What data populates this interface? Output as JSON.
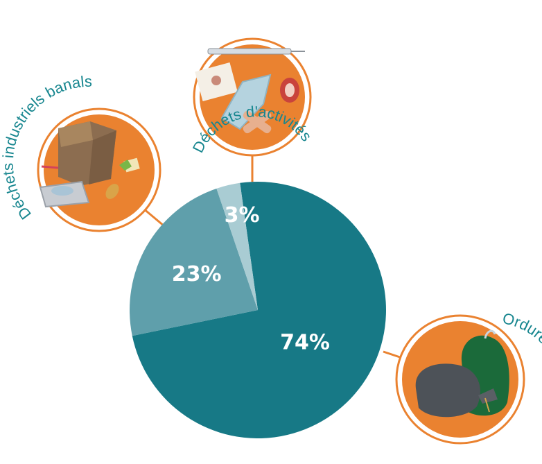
{
  "chart_data": {
    "type": "pie",
    "categories": [
      "Ordures ménagères",
      "Déchets industriels banals",
      "Déchets d'activités de soins à risques infectieux"
    ],
    "values": [
      74,
      23,
      3
    ],
    "labels": [
      "74%",
      "23%",
      "3%"
    ],
    "colors": [
      "#177986",
      "#5f9fab",
      "#a9ccd3"
    ]
  },
  "callouts": {
    "dib": "Déchets industriels banals",
    "dasri": "Déchets d'activités de soins à risques infectieux",
    "om": "Ordures ménagères"
  },
  "style": {
    "accent": "#ea8230",
    "label_color": "#17868f"
  }
}
